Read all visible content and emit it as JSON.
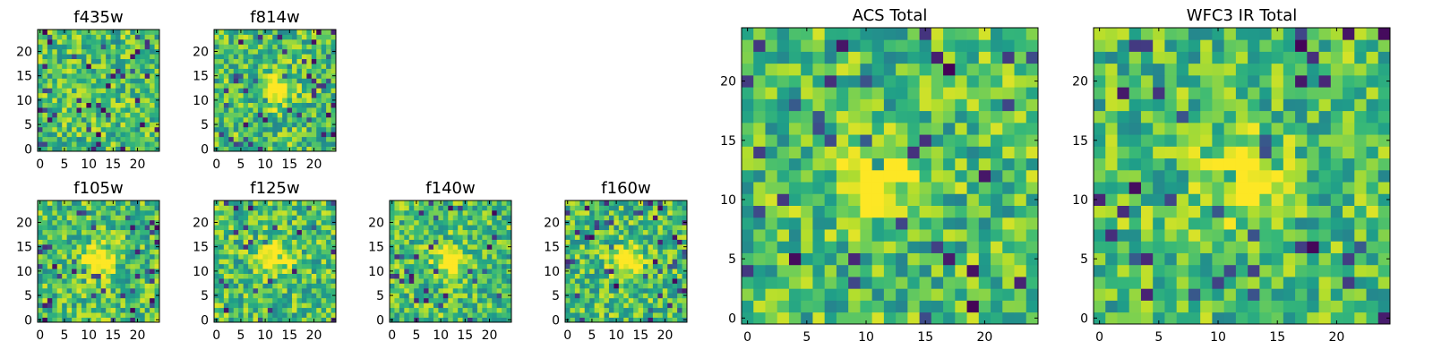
{
  "figure": {
    "colormap": "viridis",
    "grid": false,
    "legend": "none"
  },
  "chart_data": [
    {
      "type": "heatmap",
      "title": "f435w",
      "xlim": [
        0,
        24
      ],
      "ylim": [
        0,
        24
      ],
      "xticks": [
        0,
        5,
        10,
        15,
        20
      ],
      "yticks": [
        0,
        5,
        10,
        15,
        20
      ],
      "grid_size": 25,
      "cell_pattern": "noise",
      "seed": 11,
      "bright_center": null
    },
    {
      "type": "heatmap",
      "title": "f814w",
      "xlim": [
        0,
        24
      ],
      "ylim": [
        0,
        24
      ],
      "xticks": [
        0,
        5,
        10,
        15,
        20
      ],
      "yticks": [
        0,
        5,
        10,
        15,
        20
      ],
      "grid_size": 25,
      "cell_pattern": "noise",
      "seed": 23,
      "bright_center": [
        12,
        12
      ]
    },
    {
      "type": "heatmap",
      "title": "f105w",
      "xlim": [
        0,
        24
      ],
      "ylim": [
        0,
        24
      ],
      "xticks": [
        0,
        5,
        10,
        15,
        20
      ],
      "yticks": [
        0,
        5,
        10,
        15,
        20
      ],
      "grid_size": 25,
      "cell_pattern": "noise",
      "seed": 37,
      "bright_center": [
        12,
        12
      ]
    },
    {
      "type": "heatmap",
      "title": "f125w",
      "xlim": [
        0,
        24
      ],
      "ylim": [
        0,
        24
      ],
      "xticks": [
        0,
        5,
        10,
        15,
        20
      ],
      "yticks": [
        0,
        5,
        10,
        15,
        20
      ],
      "grid_size": 25,
      "cell_pattern": "noise",
      "seed": 41,
      "bright_center": [
        12,
        13
      ]
    },
    {
      "type": "heatmap",
      "title": "f140w",
      "xlim": [
        0,
        24
      ],
      "ylim": [
        0,
        24
      ],
      "xticks": [
        0,
        5,
        10,
        15,
        20
      ],
      "yticks": [
        0,
        5,
        10,
        15,
        20
      ],
      "grid_size": 25,
      "cell_pattern": "noise",
      "seed": 53,
      "bright_center": [
        12,
        12
      ]
    },
    {
      "type": "heatmap",
      "title": "f160w",
      "xlim": [
        0,
        24
      ],
      "ylim": [
        0,
        24
      ],
      "xticks": [
        0,
        5,
        10,
        15,
        20
      ],
      "yticks": [
        0,
        5,
        10,
        15,
        20
      ],
      "grid_size": 25,
      "cell_pattern": "noise",
      "seed": 67,
      "bright_center": [
        12,
        12
      ]
    },
    {
      "type": "heatmap",
      "title": "ACS Total",
      "xlim": [
        0,
        24
      ],
      "ylim": [
        0,
        24
      ],
      "xticks": [
        0,
        5,
        10,
        15,
        20
      ],
      "yticks": [
        0,
        5,
        10,
        15,
        20
      ],
      "grid_size": 25,
      "cell_pattern": "noise",
      "seed": 71,
      "bright_center": [
        11,
        12
      ]
    },
    {
      "type": "heatmap",
      "title": "WFC3 IR Total",
      "xlim": [
        0,
        24
      ],
      "ylim": [
        0,
        24
      ],
      "xticks": [
        0,
        5,
        10,
        15,
        20
      ],
      "yticks": [
        0,
        5,
        10,
        15,
        20
      ],
      "grid_size": 25,
      "cell_pattern": "noise",
      "seed": 89,
      "bright_center": [
        12,
        12
      ]
    }
  ]
}
